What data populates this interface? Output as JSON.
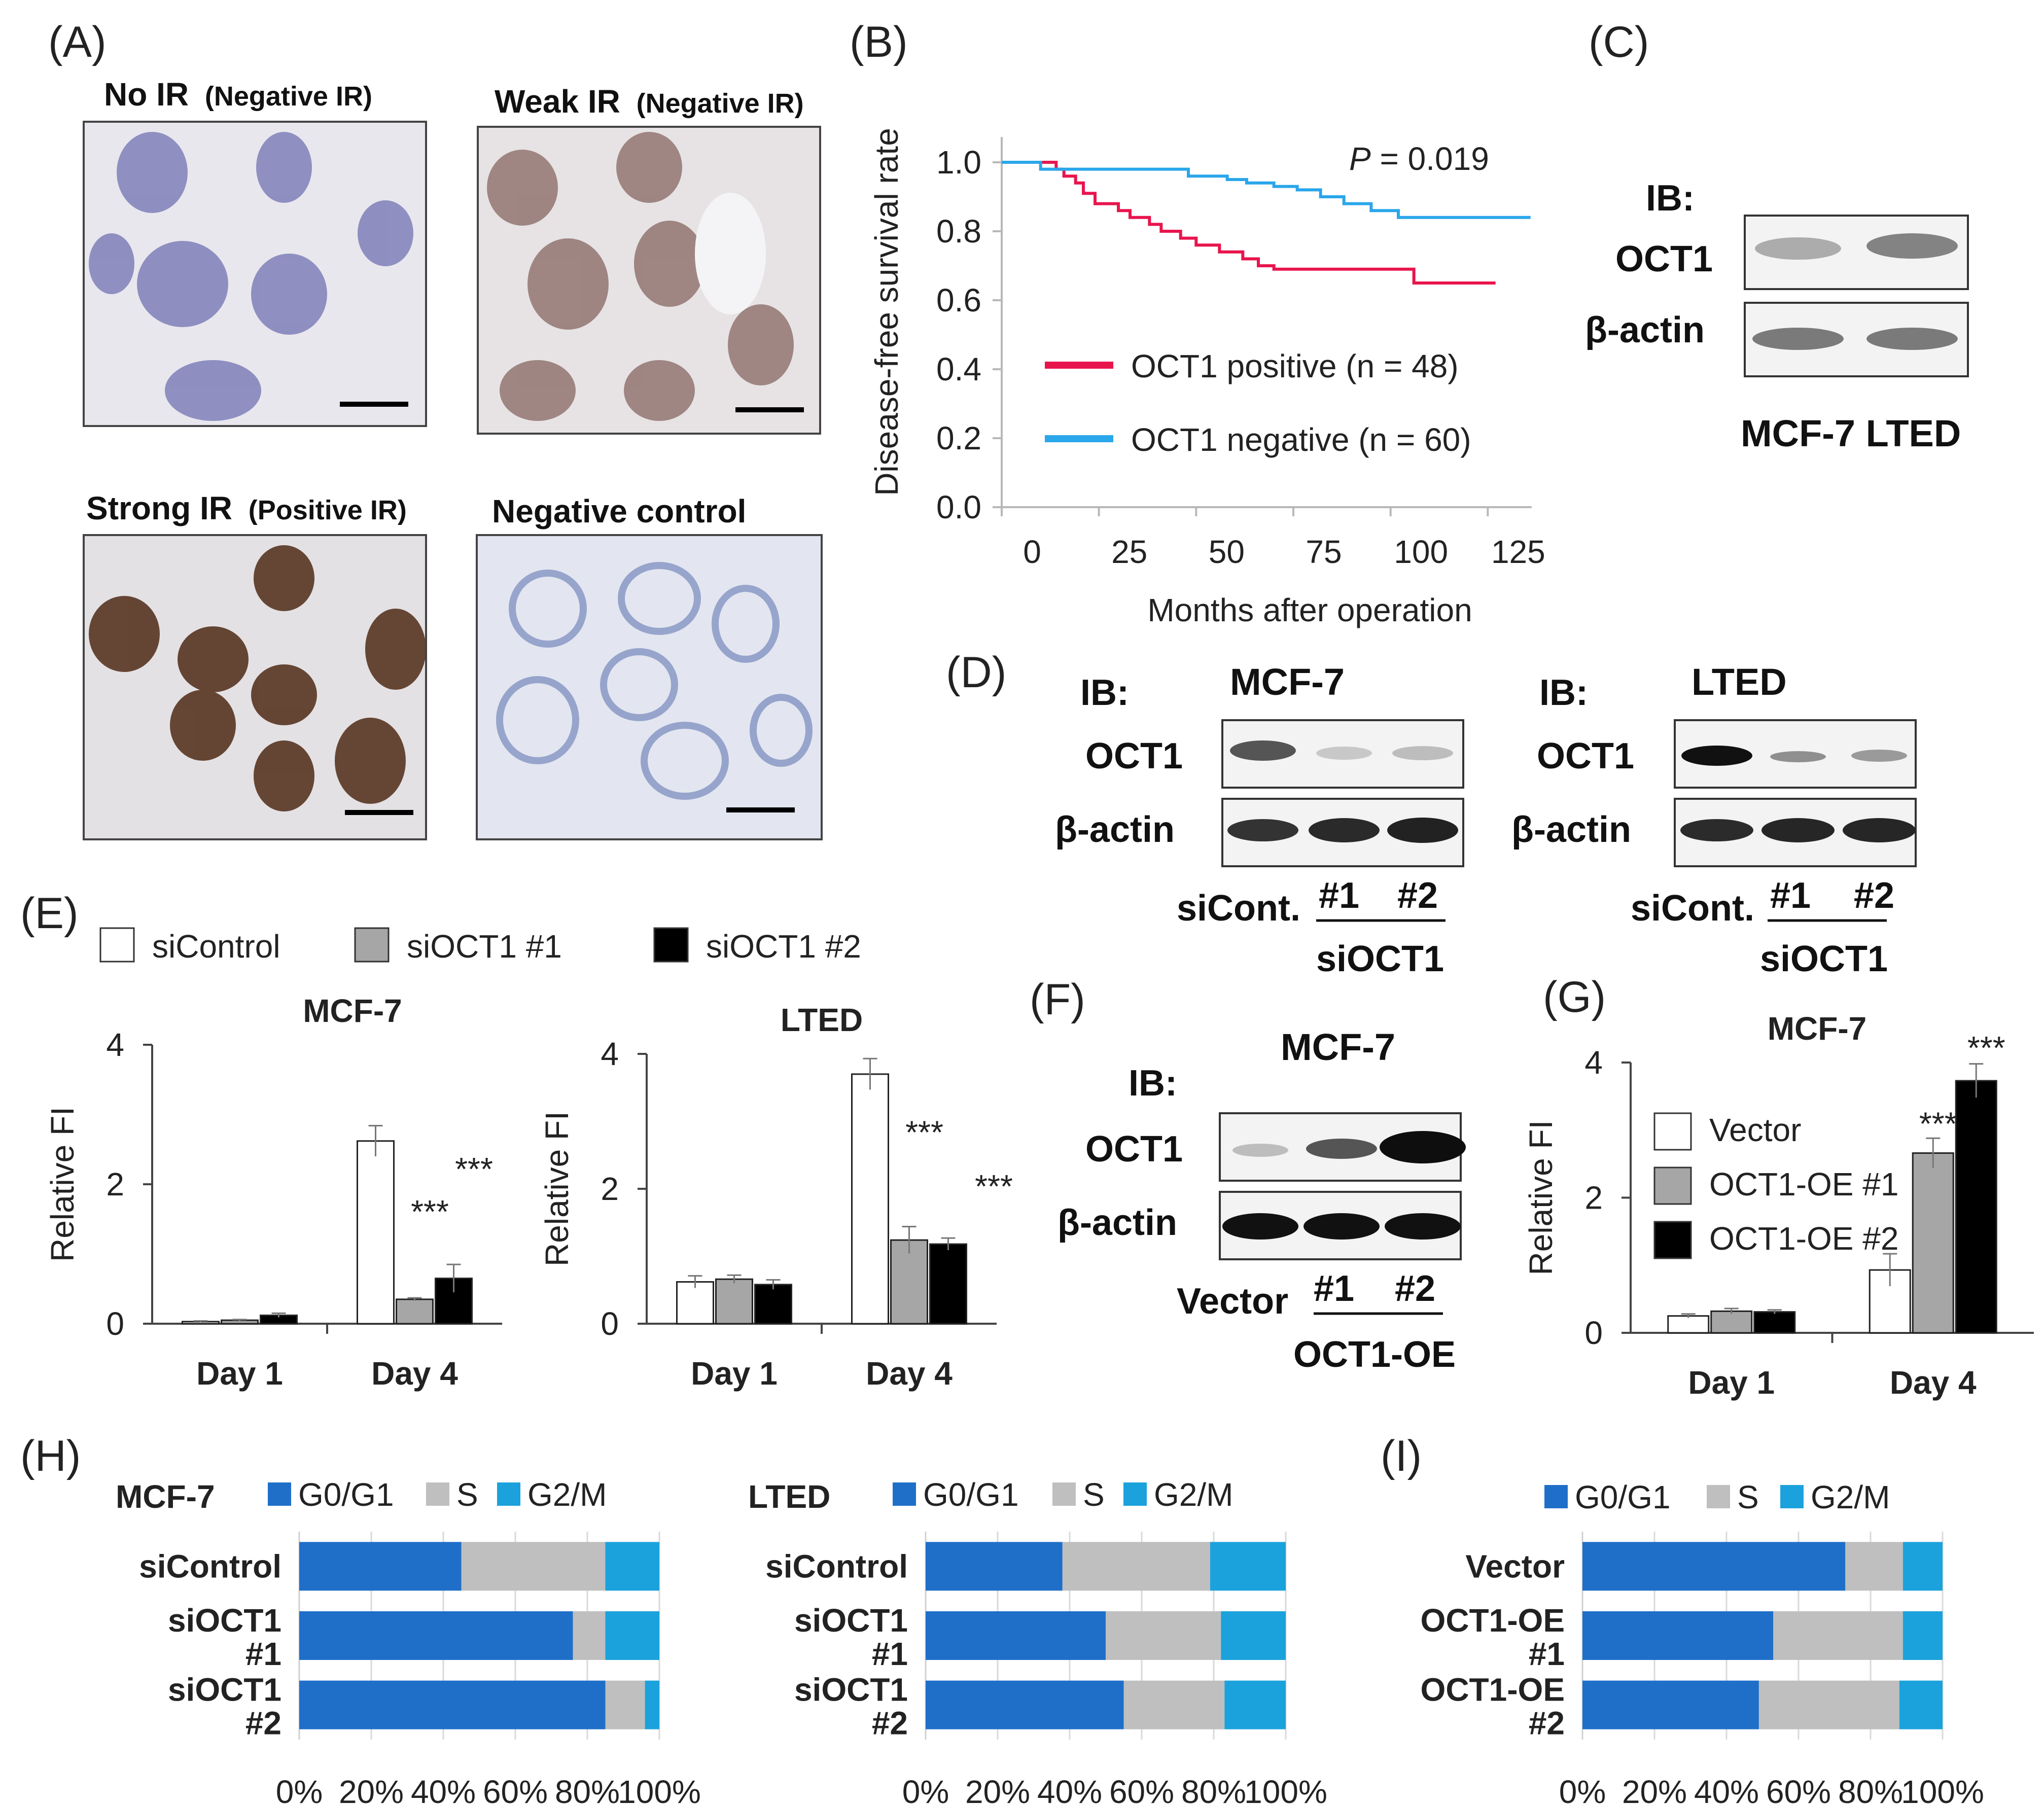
{
  "panels": {
    "A": "(A)",
    "B": "(B)",
    "C": "(C)",
    "D": "(D)",
    "E": "(E)",
    "F": "(F)",
    "G": "(G)",
    "H": "(H)",
    "I": "(I)"
  },
  "panelA": {
    "tiles": [
      {
        "title": "No IR",
        "sub": "(Negative IR)"
      },
      {
        "title": "Weak IR",
        "sub": "(Negative IR)"
      },
      {
        "title": "Strong IR",
        "sub": "(Positive IR)"
      },
      {
        "title": "Negative control",
        "sub": ""
      }
    ]
  },
  "colors": {
    "positive": "#e8154d",
    "negative": "#2aa6ea",
    "g0g1": "#1f6fc9",
    "s": "#bfbfbf",
    "g2m": "#1ba2dc",
    "bar_white": "#ffffff",
    "bar_gray": "#a6a6a6",
    "bar_black": "#000000"
  },
  "chart_data": [
    {
      "id": "B",
      "type": "line",
      "title": "",
      "xlabel": "Months after operation",
      "ylabel": "Disease-free survival rate",
      "xlim": [
        0,
        135
      ],
      "ylim": [
        0,
        1
      ],
      "xticks": [
        "0",
        "25",
        "50",
        "75",
        "100",
        "125"
      ],
      "yticks": [
        "0.0",
        "0.2",
        "0.4",
        "0.6",
        "0.8",
        "1.0"
      ],
      "annotation": {
        "italic": "P",
        "rest": " = 0.019"
      },
      "series": [
        {
          "name": "OCT1 positive (n = 48)",
          "x": [
            0,
            12,
            14,
            16,
            19,
            21,
            24,
            30,
            33,
            38,
            41,
            46,
            50,
            56,
            62,
            66,
            70,
            78,
            84,
            96,
            104,
            106,
            127
          ],
          "y": [
            1.0,
            1.0,
            0.98,
            0.96,
            0.94,
            0.91,
            0.88,
            0.86,
            0.84,
            0.82,
            0.8,
            0.78,
            0.76,
            0.74,
            0.72,
            0.7,
            0.69,
            0.69,
            0.69,
            0.69,
            0.69,
            0.65,
            0.65
          ]
        },
        {
          "name": "OCT1 negative (n = 60)",
          "x": [
            0,
            8,
            10,
            25,
            45,
            48,
            58,
            63,
            70,
            76,
            82,
            88,
            95,
            102,
            136
          ],
          "y": [
            1.0,
            1.0,
            0.98,
            0.98,
            0.98,
            0.96,
            0.95,
            0.94,
            0.93,
            0.92,
            0.9,
            0.88,
            0.86,
            0.84,
            0.84
          ]
        }
      ]
    },
    {
      "id": "E-MCF7",
      "type": "bar",
      "title": "MCF-7",
      "ylabel": "Relative FI",
      "ylim": [
        0,
        4
      ],
      "yticks": [
        "0",
        "2",
        "4"
      ],
      "categories": [
        "Day 1",
        "Day 4"
      ],
      "series": [
        {
          "name": "siControl",
          "values": [
            0.03,
            2.62
          ],
          "errors": [
            0.01,
            0.22
          ]
        },
        {
          "name": "siOCT1 #1",
          "values": [
            0.05,
            0.35
          ],
          "errors": [
            0.01,
            0.02
          ]
        },
        {
          "name": "siOCT1 #2",
          "values": [
            0.12,
            0.65
          ],
          "errors": [
            0.03,
            0.2
          ]
        }
      ],
      "stars": [
        {
          "category": 1,
          "series": 1,
          "text": "***",
          "value": 1.63
        },
        {
          "category": 1,
          "series": 2,
          "text": "***",
          "value": 2.24
        }
      ]
    },
    {
      "id": "E-LTED",
      "type": "bar",
      "title": "LTED",
      "ylabel": "Relative FI",
      "ylim": [
        0,
        4
      ],
      "yticks": [
        "0",
        "2",
        "4"
      ],
      "categories": [
        "Day 1",
        "Day 4"
      ],
      "series": [
        {
          "name": "siControl",
          "values": [
            0.62,
            3.7
          ],
          "errors": [
            0.09,
            0.23
          ]
        },
        {
          "name": "siOCT1 #1",
          "values": [
            0.66,
            1.24
          ],
          "errors": [
            0.06,
            0.2
          ]
        },
        {
          "name": "siOCT1 #2",
          "values": [
            0.58,
            1.18
          ],
          "errors": [
            0.07,
            0.09
          ]
        }
      ],
      "stars": [
        {
          "category": 1,
          "series": 1,
          "text": "***",
          "value": 2.86
        },
        {
          "category": 1,
          "series": 2,
          "text": "***",
          "value": 2.06
        }
      ]
    },
    {
      "id": "G",
      "type": "bar",
      "title": "MCF-7",
      "ylabel": "Relative FI",
      "ylim": [
        0,
        4
      ],
      "yticks": [
        "0",
        "2",
        "4"
      ],
      "categories": [
        "Day 1",
        "Day 4"
      ],
      "series": [
        {
          "name": "Vector",
          "values": [
            0.25,
            0.93
          ],
          "errors": [
            0.03,
            0.24
          ]
        },
        {
          "name": "OCT1-OE #1",
          "values": [
            0.32,
            2.66
          ],
          "errors": [
            0.04,
            0.22
          ]
        },
        {
          "name": "OCT1-OE #2",
          "values": [
            0.31,
            3.73
          ],
          "errors": [
            0.03,
            0.25
          ]
        }
      ],
      "stars": [
        {
          "category": 1,
          "series": 1,
          "text": "***",
          "value": 3.12
        },
        {
          "category": 1,
          "series": 2,
          "text": "***",
          "value": 4.24
        }
      ]
    },
    {
      "id": "H-MCF7",
      "type": "bar",
      "orientation": "horizontal-stacked",
      "title": "MCF-7",
      "categories": [
        "siControl",
        "siOCT1\n#1",
        "siOCT1\n#2"
      ],
      "xticks": [
        "0%",
        "20%",
        "40%",
        "60%",
        "80%",
        "100%"
      ],
      "series": [
        {
          "name": "G0/G1",
          "values": [
            45,
            76,
            85
          ]
        },
        {
          "name": "S",
          "values": [
            40,
            9,
            11
          ]
        },
        {
          "name": "G2/M",
          "values": [
            15,
            15,
            4
          ]
        }
      ]
    },
    {
      "id": "H-LTED",
      "type": "bar",
      "orientation": "horizontal-stacked",
      "title": "LTED",
      "categories": [
        "siControl",
        "siOCT1\n#1",
        "siOCT1\n#2"
      ],
      "xticks": [
        "0%",
        "20%",
        "40%",
        "60%",
        "80%",
        "100%"
      ],
      "series": [
        {
          "name": "G0/G1",
          "values": [
            38,
            50,
            55
          ]
        },
        {
          "name": "S",
          "values": [
            41,
            32,
            28
          ]
        },
        {
          "name": "G2/M",
          "values": [
            21,
            18,
            17
          ]
        }
      ]
    },
    {
      "id": "I",
      "type": "bar",
      "orientation": "horizontal-stacked",
      "title": "",
      "categories": [
        "Vector",
        "OCT1-OE\n#1",
        "OCT1-OE\n#2"
      ],
      "xticks": [
        "0%",
        "20%",
        "40%",
        "60%",
        "80%",
        "100%"
      ],
      "series": [
        {
          "name": "G0/G1",
          "values": [
            73,
            53,
            49
          ]
        },
        {
          "name": "S",
          "values": [
            16,
            36,
            39
          ]
        },
        {
          "name": "G2/M",
          "values": [
            11,
            11,
            12
          ]
        }
      ]
    }
  ],
  "blots": {
    "ib": "IB:",
    "oct1": "OCT1",
    "actin": "β-actin",
    "C": {
      "lanes": "MCF-7 LTED"
    },
    "D1": {
      "title": "MCF-7",
      "sicont": "siCont.",
      "n1": "#1",
      "n2": "#2",
      "group": "siOCT1"
    },
    "D2": {
      "title": "LTED",
      "sicont": "siCont.",
      "n1": "#1",
      "n2": "#2",
      "group": "siOCT1"
    },
    "F": {
      "title": "MCF-7",
      "vector": "Vector",
      "n1": "#1",
      "n2": "#2",
      "group": "OCT1-OE"
    }
  }
}
